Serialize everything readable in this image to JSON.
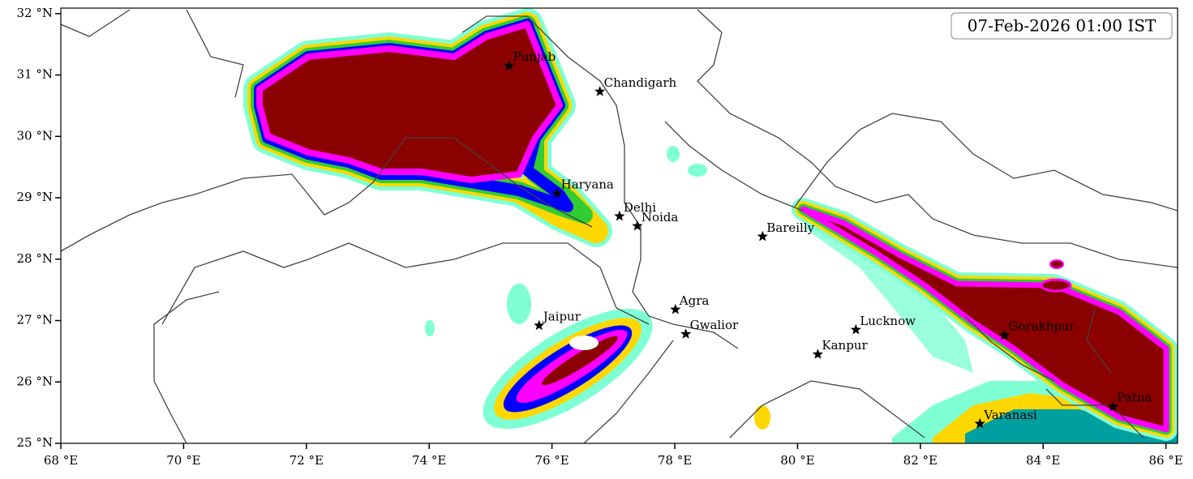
{
  "map": {
    "timestamp": "07-Feb-2026 01:00 IST",
    "xlim": [
      68,
      86.19
    ],
    "ylim": [
      25,
      32.09
    ],
    "xticks": [
      {
        "value": 68,
        "label": "68 °E"
      },
      {
        "value": 70,
        "label": "70 °E"
      },
      {
        "value": 72,
        "label": "72 °E"
      },
      {
        "value": 74,
        "label": "74 °E"
      },
      {
        "value": 76,
        "label": "76 °E"
      },
      {
        "value": 78,
        "label": "78 °E"
      },
      {
        "value": 80,
        "label": "80 °E"
      },
      {
        "value": 82,
        "label": "82 °E"
      },
      {
        "value": 84,
        "label": "84 °E"
      },
      {
        "value": 86,
        "label": "86 °E"
      }
    ],
    "yticks": [
      {
        "value": 25,
        "label": "25 °N"
      },
      {
        "value": 26,
        "label": "26 °N"
      },
      {
        "value": 27,
        "label": "27 °N"
      },
      {
        "value": 28,
        "label": "28 °N"
      },
      {
        "value": 29,
        "label": "29 °N"
      },
      {
        "value": 30,
        "label": "30 °N"
      },
      {
        "value": 31,
        "label": "31 °N"
      },
      {
        "value": 32,
        "label": "32 °N"
      }
    ],
    "cities": [
      {
        "name": "Punjab",
        "lon": 75.3,
        "lat": 31.15
      },
      {
        "name": "Chandigarh",
        "lon": 76.78,
        "lat": 30.73
      },
      {
        "name": "Haryana",
        "lon": 76.08,
        "lat": 29.07
      },
      {
        "name": "Delhi",
        "lon": 77.1,
        "lat": 28.7
      },
      {
        "name": "Noida",
        "lon": 77.39,
        "lat": 28.54
      },
      {
        "name": "Bareilly",
        "lon": 79.43,
        "lat": 28.37
      },
      {
        "name": "Agra",
        "lon": 78.01,
        "lat": 27.18
      },
      {
        "name": "Jaipur",
        "lon": 75.79,
        "lat": 26.92
      },
      {
        "name": "Gwalior",
        "lon": 78.18,
        "lat": 26.78
      },
      {
        "name": "Lucknow",
        "lon": 80.95,
        "lat": 26.85
      },
      {
        "name": "Kanpur",
        "lon": 80.33,
        "lat": 26.45
      },
      {
        "name": "Gorakhpur",
        "lon": 83.37,
        "lat": 26.76
      },
      {
        "name": "Varanasi",
        "lon": 82.97,
        "lat": 25.32
      },
      {
        "name": "Patna",
        "lon": 85.14,
        "lat": 25.6
      }
    ]
  }
}
